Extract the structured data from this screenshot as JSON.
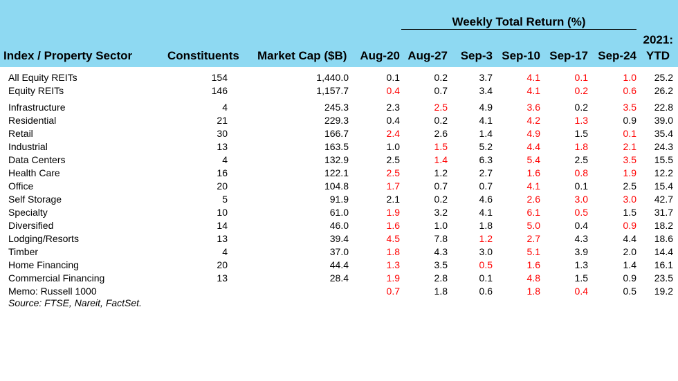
{
  "chart_data": {
    "type": "table",
    "group_header": "Weekly Total Return (%)",
    "columns": [
      "Index / Property Sector",
      "Constituents",
      "Market Cap ($B)",
      "Aug-20",
      "Aug-27",
      "Sep-3",
      "Sep-10",
      "Sep-17",
      "Sep-24",
      "2021:",
      "YTD"
    ],
    "rows": [
      {
        "name": "All Equity REITs",
        "constituents": "154",
        "mcap": "1,440.0",
        "values": [
          "0.1",
          "0.2",
          "3.7",
          "4.1",
          "0.1",
          "1.0",
          "25.2"
        ],
        "neg": [
          false,
          false,
          false,
          true,
          true,
          true,
          false
        ]
      },
      {
        "name": "Equity REITs",
        "constituents": "146",
        "mcap": "1,157.7",
        "values": [
          "0.4",
          "0.7",
          "3.4",
          "4.1",
          "0.2",
          "0.6",
          "26.2"
        ],
        "neg": [
          true,
          false,
          false,
          true,
          true,
          true,
          false
        ]
      },
      {
        "name": "Infrastructure",
        "constituents": "4",
        "mcap": "245.3",
        "values": [
          "2.3",
          "2.5",
          "4.9",
          "3.6",
          "0.2",
          "3.5",
          "22.8"
        ],
        "neg": [
          false,
          true,
          false,
          true,
          false,
          true,
          false
        ]
      },
      {
        "name": "Residential",
        "constituents": "21",
        "mcap": "229.3",
        "values": [
          "0.4",
          "0.2",
          "4.1",
          "4.2",
          "1.3",
          "0.9",
          "39.0"
        ],
        "neg": [
          false,
          false,
          false,
          true,
          true,
          false,
          false
        ]
      },
      {
        "name": "Retail",
        "constituents": "30",
        "mcap": "166.7",
        "values": [
          "2.4",
          "2.6",
          "1.4",
          "4.9",
          "1.5",
          "0.1",
          "35.4"
        ],
        "neg": [
          true,
          false,
          false,
          true,
          false,
          true,
          false
        ]
      },
      {
        "name": "Industrial",
        "constituents": "13",
        "mcap": "163.5",
        "values": [
          "1.0",
          "1.5",
          "5.2",
          "4.4",
          "1.8",
          "2.1",
          "24.3"
        ],
        "neg": [
          false,
          true,
          false,
          true,
          true,
          true,
          false
        ]
      },
      {
        "name": "Data Centers",
        "constituents": "4",
        "mcap": "132.9",
        "values": [
          "2.5",
          "1.4",
          "6.3",
          "5.4",
          "2.5",
          "3.5",
          "15.5"
        ],
        "neg": [
          false,
          true,
          false,
          true,
          false,
          true,
          false
        ]
      },
      {
        "name": "Health Care",
        "constituents": "16",
        "mcap": "122.1",
        "values": [
          "2.5",
          "1.2",
          "2.7",
          "1.6",
          "0.8",
          "1.9",
          "12.2"
        ],
        "neg": [
          true,
          false,
          false,
          true,
          true,
          true,
          false
        ]
      },
      {
        "name": "Office",
        "constituents": "20",
        "mcap": "104.8",
        "values": [
          "1.7",
          "0.7",
          "0.7",
          "4.1",
          "0.1",
          "2.5",
          "15.4"
        ],
        "neg": [
          true,
          false,
          false,
          true,
          false,
          false,
          false
        ]
      },
      {
        "name": "Self Storage",
        "constituents": "5",
        "mcap": "91.9",
        "values": [
          "2.1",
          "0.2",
          "4.6",
          "2.6",
          "3.0",
          "3.0",
          "42.7"
        ],
        "neg": [
          false,
          false,
          false,
          true,
          true,
          true,
          false
        ]
      },
      {
        "name": "Specialty",
        "constituents": "10",
        "mcap": "61.0",
        "values": [
          "1.9",
          "3.2",
          "4.1",
          "6.1",
          "0.5",
          "1.5",
          "31.7"
        ],
        "neg": [
          true,
          false,
          false,
          true,
          true,
          false,
          false
        ]
      },
      {
        "name": "Diversified",
        "constituents": "14",
        "mcap": "46.0",
        "values": [
          "1.6",
          "1.0",
          "1.8",
          "5.0",
          "0.4",
          "0.9",
          "18.2"
        ],
        "neg": [
          true,
          false,
          false,
          true,
          false,
          true,
          false
        ]
      },
      {
        "name": "Lodging/Resorts",
        "constituents": "13",
        "mcap": "39.4",
        "values": [
          "4.5",
          "7.8",
          "1.2",
          "2.7",
          "4.3",
          "4.4",
          "18.6"
        ],
        "neg": [
          true,
          false,
          true,
          true,
          false,
          false,
          false
        ]
      },
      {
        "name": "Timber",
        "constituents": "4",
        "mcap": "37.0",
        "values": [
          "1.8",
          "4.3",
          "3.0",
          "5.1",
          "3.9",
          "2.0",
          "14.4"
        ],
        "neg": [
          true,
          false,
          false,
          true,
          false,
          false,
          false
        ]
      },
      {
        "name": "Home Financing",
        "constituents": "20",
        "mcap": "44.4",
        "values": [
          "1.3",
          "3.5",
          "0.5",
          "1.6",
          "1.3",
          "1.4",
          "16.1"
        ],
        "neg": [
          true,
          false,
          true,
          true,
          false,
          false,
          false
        ]
      },
      {
        "name": "Commercial Financing",
        "constituents": "13",
        "mcap": "28.4",
        "values": [
          "1.9",
          "2.8",
          "0.1",
          "4.8",
          "1.5",
          "0.9",
          "23.5"
        ],
        "neg": [
          true,
          false,
          false,
          true,
          false,
          false,
          false
        ]
      },
      {
        "name": "Memo: Russell 1000",
        "constituents": "",
        "mcap": "",
        "values": [
          "0.7",
          "1.8",
          "0.6",
          "1.8",
          "0.4",
          "0.5",
          "19.2"
        ],
        "neg": [
          true,
          false,
          false,
          true,
          true,
          false,
          false
        ]
      }
    ],
    "source": "Source: FTSE, Nareit, FactSet."
  },
  "colors": {
    "header_background": "#8ed9f2",
    "negative": "#ff0000",
    "text": "#000000"
  }
}
